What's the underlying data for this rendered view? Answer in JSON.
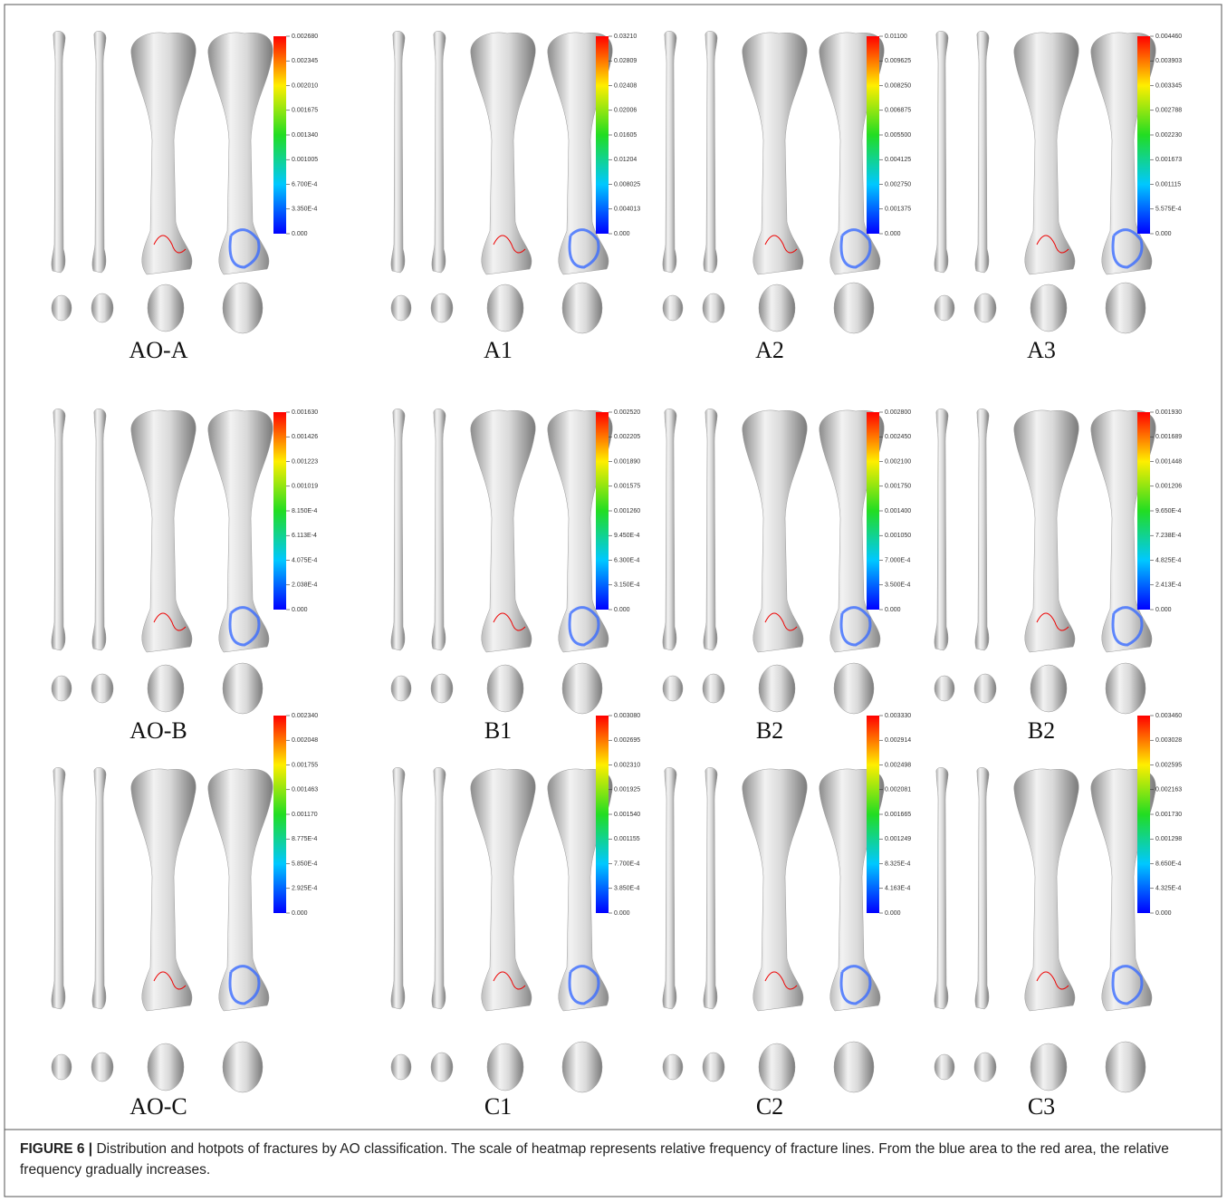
{
  "panels": [
    {
      "label": "AO-A",
      "ticks": [
        "0.002680",
        "0.002345",
        "0.002010",
        "0.001675",
        "0.001340",
        "0.001005",
        "6.700E-4",
        "3.350E-4",
        "0.000"
      ]
    },
    {
      "label": "A1",
      "ticks": [
        "0.03210",
        "0.02809",
        "0.02408",
        "0.02006",
        "0.01605",
        "0.01204",
        "0.008025",
        "0.004013",
        "0.000"
      ]
    },
    {
      "label": "A2",
      "ticks": [
        "0.01100",
        "0.009625",
        "0.008250",
        "0.006875",
        "0.005500",
        "0.004125",
        "0.002750",
        "0.001375",
        "0.000"
      ]
    },
    {
      "label": "A3",
      "ticks": [
        "0.004460",
        "0.003903",
        "0.003345",
        "0.002788",
        "0.002230",
        "0.001673",
        "0.001115",
        "5.575E-4",
        "0.000"
      ]
    },
    {
      "label": "AO-B",
      "ticks": [
        "0.001630",
        "0.001426",
        "0.001223",
        "0.001019",
        "8.150E-4",
        "6.113E-4",
        "4.075E-4",
        "2.038E-4",
        "0.000"
      ]
    },
    {
      "label": "B1",
      "ticks": [
        "0.002520",
        "0.002205",
        "0.001890",
        "0.001575",
        "0.001260",
        "9.450E-4",
        "6.300E-4",
        "3.150E-4",
        "0.000"
      ]
    },
    {
      "label": "B2",
      "ticks": [
        "0.002800",
        "0.002450",
        "0.002100",
        "0.001750",
        "0.001400",
        "0.001050",
        "7.000E-4",
        "3.500E-4",
        "0.000"
      ]
    },
    {
      "label": "B2",
      "ticks": [
        "0.001930",
        "0.001689",
        "0.001448",
        "0.001206",
        "9.650E-4",
        "7.238E-4",
        "4.825E-4",
        "2.413E-4",
        "0.000"
      ]
    },
    {
      "label": "AO-C",
      "ticks": [
        "0.002340",
        "0.002048",
        "0.001755",
        "0.001463",
        "0.001170",
        "8.775E-4",
        "5.850E-4",
        "2.925E-4",
        "0.000"
      ]
    },
    {
      "label": "C1",
      "ticks": [
        "0.003080",
        "0.002695",
        "0.002310",
        "0.001925",
        "0.001540",
        "0.001155",
        "7.700E-4",
        "3.850E-4",
        "0.000"
      ]
    },
    {
      "label": "C2",
      "ticks": [
        "0.003330",
        "0.002914",
        "0.002498",
        "0.002081",
        "0.001665",
        "0.001249",
        "8.325E-4",
        "4.163E-4",
        "0.000"
      ]
    },
    {
      "label": "C3",
      "ticks": [
        "0.003460",
        "0.003028",
        "0.002595",
        "0.002163",
        "0.001730",
        "0.001298",
        "8.650E-4",
        "4.325E-4",
        "0.000"
      ]
    }
  ],
  "caption": {
    "label": "FIGURE 6 |",
    "text": "Distribution and hotpots of fractures by AO classification. The scale of heatmap represents relative frequency of fracture lines. From the blue area to the red area, the relative frequency gradually increases."
  }
}
